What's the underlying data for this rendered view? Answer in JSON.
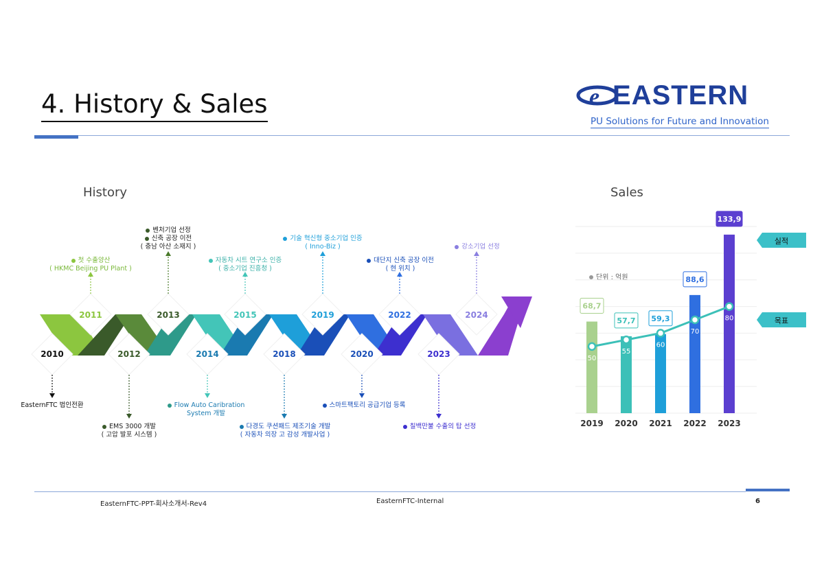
{
  "header": {
    "title": "4. History & Sales",
    "logo_text": "EASTERN",
    "tagline": "PU Solutions for Future and Innovation"
  },
  "history": {
    "heading": "History",
    "years_top": [
      "2011",
      "2013",
      "2015",
      "2019",
      "2022",
      "2024"
    ],
    "years_bottom": [
      "2010",
      "2012",
      "2014",
      "2018",
      "2020",
      "2023"
    ],
    "notes_top": {
      "y2011_1": "첫 수출양산",
      "y2011_2": "( HKMC Beijing PU Plant )",
      "y2013_1": "벤처기업 선정",
      "y2013_2": "신축 공장 이전",
      "y2013_3": "( 충남 아산 소재지 )",
      "y2015_1": "자동차 시트 연구소 인증",
      "y2015_2": "( 중소기업 진흥청 )",
      "y2019_1": "기술 혁신형 중소기업 인증",
      "y2019_2": "( Inno-Biz )",
      "y2022_1": "대단지 신축 공장 이전",
      "y2022_2": "( 현 위치 )",
      "y2024_1": "강소기업 선정"
    },
    "notes_bottom": {
      "y2010_1": "EasternFTC 법인전환",
      "y2012_1": "EMS 3000 개발",
      "y2012_2": "( 고압 발포 시스템 )",
      "y2014_1": "Flow Auto Caribration",
      "y2014_2": "System 개발",
      "y2018_1": "다경도 쿠션패드 제조기술 개발",
      "y2018_2": "( 자동차 의장 고 감성 개발사업 )",
      "y2020_1": "스마트팩토리 공급기업 등록",
      "y2023_1": "칠백만불 수출의 탑 선정"
    }
  },
  "sales": {
    "heading": "Sales",
    "unit_label": "단위 : 억원",
    "legend_actual": "실적",
    "legend_target": "목표"
  },
  "chart_data": {
    "type": "bar",
    "categories": [
      "2019",
      "2020",
      "2021",
      "2022",
      "2023"
    ],
    "series": [
      {
        "name": "실적",
        "values": [
          68.7,
          57.7,
          59.3,
          88.6,
          133.9
        ]
      },
      {
        "name": "목표",
        "values": [
          50,
          55,
          60,
          70,
          80
        ]
      }
    ],
    "value_labels": [
      "68,7",
      "57,7",
      "59,3",
      "88,6",
      "133,9"
    ],
    "target_labels": [
      "50",
      "55",
      "60",
      "70",
      "80"
    ],
    "bar_colors": [
      "#a9d18e",
      "#3cc0b8",
      "#1e9fd9",
      "#2f6fe0",
      "#5b3fd0"
    ],
    "line_color": "#3cc0b8",
    "ylim": [
      0,
      140
    ],
    "grid": true
  },
  "footer": {
    "left": "EasternFTC-PPT-회사소개서-Rev4",
    "center": "EasternFTC-Internal",
    "page": "6"
  }
}
